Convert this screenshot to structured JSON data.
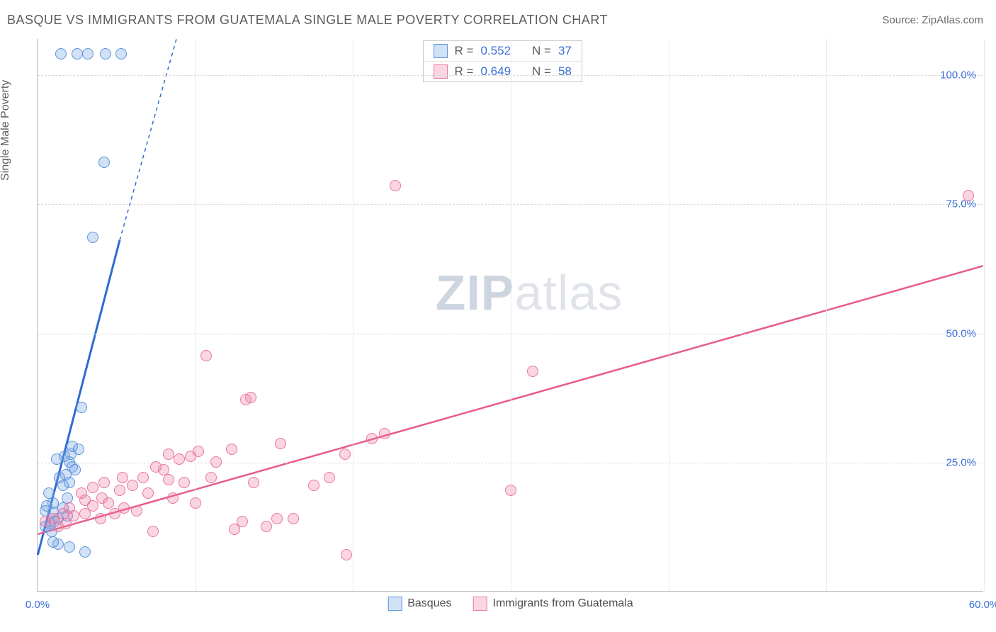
{
  "header": {
    "title": "BASQUE VS IMMIGRANTS FROM GUATEMALA SINGLE MALE POVERTY CORRELATION CHART",
    "source_label": "Source:",
    "source_name": "ZipAtlas.com"
  },
  "chart": {
    "type": "scatter",
    "ylabel": "Single Male Poverty",
    "background_color": "#ffffff",
    "grid_color": "#d8d8d8",
    "axis_color": "#b8b8b8",
    "tick_color_x": "#3b6fd6",
    "tick_color_y": "#3b6fd6",
    "xlim": [
      0,
      60
    ],
    "ylim": [
      0,
      107
    ],
    "xticks": [
      {
        "v": 0,
        "l": "0.0%"
      },
      {
        "v": 60,
        "l": "60.0%"
      }
    ],
    "yticks": [
      {
        "v": 25,
        "l": "25.0%"
      },
      {
        "v": 50,
        "l": "50.0%"
      },
      {
        "v": 75,
        "l": "75.0%"
      },
      {
        "v": 100,
        "l": "100.0%"
      }
    ],
    "vgrid": [
      10,
      20,
      30,
      40,
      50,
      60
    ],
    "marker_radius": 8,
    "marker_border_width": 1,
    "watermark": "ZIPatlas",
    "series": [
      {
        "id": "basques",
        "label": "Basques",
        "fill": "rgba(124,169,230,0.35)",
        "stroke": "#5e93db",
        "trend_color": "#2e6bd1",
        "trend_width": 3,
        "trend": {
          "x1": 0,
          "y1": 7,
          "x2_solid": 5.2,
          "y2_solid": 68,
          "x2_dash": 8.8,
          "y2_dash": 107
        },
        "R": "0.552",
        "N": "37",
        "points": [
          [
            0.5,
            15.5
          ],
          [
            0.5,
            12.5
          ],
          [
            0.8,
            13.0
          ],
          [
            0.9,
            11.5
          ],
          [
            1.0,
            15.2
          ],
          [
            1.0,
            17.0
          ],
          [
            1.1,
            13.5
          ],
          [
            1.3,
            14.0
          ],
          [
            1.3,
            9.0
          ],
          [
            1.6,
            20.5
          ],
          [
            1.6,
            16.0
          ],
          [
            1.8,
            22.5
          ],
          [
            1.9,
            18.0
          ],
          [
            2.0,
            25.0
          ],
          [
            2.0,
            21.0
          ],
          [
            2.1,
            26.5
          ],
          [
            2.2,
            24.0
          ],
          [
            2.2,
            28.0
          ],
          [
            2.4,
            23.5
          ],
          [
            2.6,
            27.5
          ],
          [
            2.8,
            35.5
          ],
          [
            1.0,
            9.5
          ],
          [
            2.0,
            8.5
          ],
          [
            3.0,
            7.5
          ],
          [
            0.7,
            19.0
          ],
          [
            1.4,
            22.0
          ],
          [
            1.7,
            26.0
          ],
          [
            3.5,
            68.5
          ],
          [
            4.2,
            83.0
          ],
          [
            1.5,
            104.0
          ],
          [
            2.5,
            104.0
          ],
          [
            3.2,
            104.0
          ],
          [
            4.3,
            104.0
          ],
          [
            5.3,
            104.0
          ],
          [
            1.9,
            14.5
          ],
          [
            0.6,
            16.5
          ],
          [
            1.2,
            25.5
          ]
        ]
      },
      {
        "id": "guatemala",
        "label": "Immigrants from Guatemala",
        "fill": "rgba(236,120,160,0.30)",
        "stroke": "#e9759f",
        "trend_color": "#e85a8a",
        "trend_width": 2.5,
        "trend": {
          "x1": 0,
          "y1": 11,
          "x2_solid": 60,
          "y2_solid": 63,
          "x2_dash": 60,
          "y2_dash": 63
        },
        "R": "0.649",
        "N": "58",
        "points": [
          [
            0.5,
            13.5
          ],
          [
            1.0,
            14.0
          ],
          [
            1.3,
            12.5
          ],
          [
            1.6,
            15.0
          ],
          [
            2.0,
            16.0
          ],
          [
            2.3,
            14.5
          ],
          [
            2.8,
            19.0
          ],
          [
            3.0,
            15.0
          ],
          [
            3.0,
            17.5
          ],
          [
            3.5,
            16.5
          ],
          [
            3.5,
            20.0
          ],
          [
            4.0,
            14.0
          ],
          [
            4.1,
            18.0
          ],
          [
            4.2,
            21.0
          ],
          [
            4.5,
            17.0
          ],
          [
            4.9,
            15.0
          ],
          [
            5.2,
            19.5
          ],
          [
            5.4,
            22.0
          ],
          [
            5.5,
            16.0
          ],
          [
            6.0,
            20.5
          ],
          [
            6.3,
            15.5
          ],
          [
            6.7,
            22.0
          ],
          [
            7.0,
            19.0
          ],
          [
            7.3,
            11.5
          ],
          [
            7.5,
            24.0
          ],
          [
            8.0,
            23.5
          ],
          [
            8.3,
            26.5
          ],
          [
            8.3,
            21.5
          ],
          [
            8.6,
            18.0
          ],
          [
            9.0,
            25.5
          ],
          [
            9.3,
            21.0
          ],
          [
            9.7,
            26.0
          ],
          [
            10.0,
            17.0
          ],
          [
            10.2,
            27.0
          ],
          [
            10.7,
            45.5
          ],
          [
            11.0,
            22.0
          ],
          [
            11.3,
            25.0
          ],
          [
            12.3,
            27.5
          ],
          [
            12.5,
            12.0
          ],
          [
            13.0,
            13.5
          ],
          [
            13.2,
            37.0
          ],
          [
            13.5,
            37.5
          ],
          [
            13.7,
            21.0
          ],
          [
            14.5,
            12.5
          ],
          [
            15.2,
            14.0
          ],
          [
            15.4,
            28.5
          ],
          [
            16.2,
            14.0
          ],
          [
            17.5,
            20.5
          ],
          [
            18.5,
            22.0
          ],
          [
            19.5,
            26.5
          ],
          [
            19.6,
            7.0
          ],
          [
            21.2,
            29.5
          ],
          [
            22.0,
            30.5
          ],
          [
            22.7,
            78.5
          ],
          [
            30.0,
            19.5
          ],
          [
            31.4,
            42.5
          ],
          [
            59.0,
            76.5
          ],
          [
            1.8,
            13.0
          ]
        ]
      }
    ]
  }
}
